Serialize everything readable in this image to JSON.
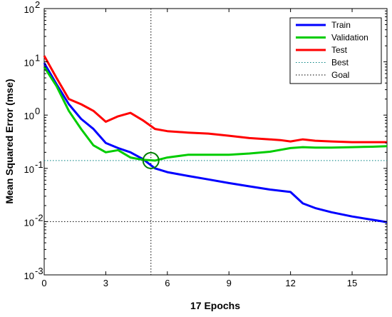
{
  "chart_data": {
    "type": "line",
    "xlabel": "17 Epochs",
    "ylabel": "Mean Squared Error  (mse)",
    "y_scale": "log",
    "xlim": [
      0,
      16.7
    ],
    "ylim": [
      0.001,
      100
    ],
    "x_ticks": [
      "0",
      "3",
      "6",
      "9",
      "12",
      "15"
    ],
    "y_ticks": [
      {
        "base": "10",
        "exp": "-3"
      },
      {
        "base": "10",
        "exp": "-2"
      },
      {
        "base": "10",
        "exp": "-1"
      },
      {
        "base": "10",
        "exp": "0"
      },
      {
        "base": "10",
        "exp": "1"
      },
      {
        "base": "10",
        "exp": "2"
      }
    ],
    "grid": false,
    "legend_position": "top-right",
    "series": [
      {
        "name": "Train",
        "color": "#0000ff",
        "x": [
          0,
          0.6,
          1.2,
          1.8,
          2.4,
          3.0,
          3.6,
          4.2,
          4.8,
          5.4,
          6.0,
          7.0,
          8.0,
          9.0,
          10.0,
          11.0,
          12.0,
          12.6,
          13.2,
          14.0,
          15.0,
          16.0,
          16.7
        ],
        "y": [
          9.5,
          3.8,
          1.6,
          0.85,
          0.55,
          0.3,
          0.24,
          0.2,
          0.15,
          0.1,
          0.085,
          0.072,
          0.062,
          0.053,
          0.046,
          0.04,
          0.036,
          0.022,
          0.018,
          0.015,
          0.0125,
          0.0108,
          0.0098
        ]
      },
      {
        "name": "Validation",
        "color": "#00cc00",
        "x": [
          0,
          0.6,
          1.2,
          1.8,
          2.4,
          3.0,
          3.6,
          4.2,
          4.8,
          5.4,
          6.0,
          7.0,
          8.0,
          9.0,
          10.0,
          11.0,
          12.0,
          12.6,
          13.2,
          14.0,
          15.0,
          16.0,
          16.7
        ],
        "y": [
          8.0,
          3.5,
          1.2,
          0.55,
          0.27,
          0.2,
          0.22,
          0.16,
          0.145,
          0.14,
          0.16,
          0.18,
          0.18,
          0.18,
          0.19,
          0.205,
          0.24,
          0.25,
          0.245,
          0.245,
          0.25,
          0.255,
          0.26
        ]
      },
      {
        "name": "Test",
        "color": "#ff0000",
        "x": [
          0,
          0.6,
          1.2,
          1.8,
          2.4,
          3.0,
          3.6,
          4.2,
          4.8,
          5.4,
          6.0,
          7.0,
          8.0,
          9.0,
          10.0,
          11.0,
          11.5,
          12.0,
          12.6,
          13.2,
          14.0,
          15.0,
          16.0,
          16.7
        ],
        "y": [
          13.0,
          5.0,
          2.0,
          1.6,
          1.2,
          0.75,
          0.95,
          1.1,
          0.8,
          0.55,
          0.5,
          0.47,
          0.45,
          0.41,
          0.37,
          0.35,
          0.34,
          0.32,
          0.35,
          0.33,
          0.32,
          0.31,
          0.31,
          0.31
        ]
      }
    ],
    "best": {
      "name": "Best",
      "color": "#008080",
      "epoch": 5.2,
      "value": 0.14
    },
    "goal": {
      "name": "Goal",
      "color": "#000000",
      "value": 0.01
    }
  }
}
